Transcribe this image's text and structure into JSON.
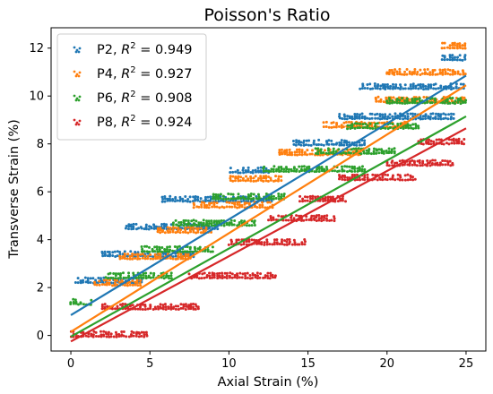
{
  "chart_data": {
    "type": "scatter",
    "title": "Poisson's Ratio",
    "xlabel": "Axial Strain (%)",
    "ylabel": "Transverse Strain (%)",
    "xlim": [
      -1.25,
      26.25
    ],
    "ylim": [
      -0.65,
      12.85
    ],
    "xticks": [
      0,
      5,
      10,
      15,
      20,
      25
    ],
    "yticks": [
      0,
      2,
      4,
      6,
      8,
      10,
      12
    ],
    "grid": false,
    "legend_position": "top-left",
    "series": [
      {
        "name": "P2",
        "r2": "0.949",
        "color": "#1f77b4",
        "fit": {
          "x": [
            0,
            25
          ],
          "y": [
            0.85,
            10.85
          ]
        },
        "bands": [
          {
            "x": [
              0.3,
              4.6
            ],
            "y": 2.3
          },
          {
            "x": [
              2.0,
              7.8
            ],
            "y": 3.4
          },
          {
            "x": [
              3.5,
              9.4
            ],
            "y": 4.55
          },
          {
            "x": [
              5.8,
              12.8
            ],
            "y": 5.7
          },
          {
            "x": [
              10.1,
              12.6
            ],
            "y": 6.9
          },
          {
            "x": [
              14.1,
              18.7
            ],
            "y": 8.05
          },
          {
            "x": [
              17.0,
              24.3
            ],
            "y": 9.15
          },
          {
            "x": [
              18.3,
              25.0
            ],
            "y": 10.4
          },
          {
            "x": [
              23.5,
              25.0
            ],
            "y": 11.6
          }
        ]
      },
      {
        "name": "P4",
        "r2": "0.927",
        "color": "#ff7f0e",
        "fit": {
          "x": [
            0,
            25
          ],
          "y": [
            0.15,
            10.45
          ]
        },
        "bands": [
          {
            "x": [
              1.5,
              4.5
            ],
            "y": 2.2
          },
          {
            "x": [
              3.1,
              7.7
            ],
            "y": 3.3
          },
          {
            "x": [
              5.5,
              9.0
            ],
            "y": 4.4
          },
          {
            "x": [
              7.8,
              12.9
            ],
            "y": 5.45
          },
          {
            "x": [
              10.1,
              13.4
            ],
            "y": 6.55
          },
          {
            "x": [
              13.2,
              18.4
            ],
            "y": 7.65
          },
          {
            "x": [
              16.0,
              21.4
            ],
            "y": 8.8
          },
          {
            "x": [
              19.3,
              25.0
            ],
            "y": 9.85
          },
          {
            "x": [
              20.0,
              25.0
            ],
            "y": 11.0
          },
          {
            "x": [
              23.5,
              25.0
            ],
            "y": 12.1
          }
        ]
      },
      {
        "name": "P6",
        "r2": "0.908",
        "color": "#2ca02c",
        "fit": {
          "x": [
            0,
            25
          ],
          "y": [
            -0.05,
            9.15
          ]
        },
        "bands": [
          {
            "x": [
              0.0,
              1.4
            ],
            "y": 1.4
          },
          {
            "x": [
              2.2,
              6.5
            ],
            "y": 2.5
          },
          {
            "x": [
              4.5,
              9.1
            ],
            "y": 3.6
          },
          {
            "x": [
              6.5,
              11.7
            ],
            "y": 4.7
          },
          {
            "x": [
              9.0,
              13.5
            ],
            "y": 5.8
          },
          {
            "x": [
              12.2,
              18.6
            ],
            "y": 6.95
          },
          {
            "x": [
              15.5,
              20.6
            ],
            "y": 7.7
          },
          {
            "x": [
              17.5,
              22.0
            ],
            "y": 8.75
          },
          {
            "x": [
              20.0,
              25.0
            ],
            "y": 9.8
          }
        ]
      },
      {
        "name": "P8",
        "r2": "0.924",
        "color": "#d62728",
        "fit": {
          "x": [
            0,
            25
          ],
          "y": [
            -0.25,
            8.65
          ]
        },
        "bands": [
          {
            "x": [
              0.0,
              4.8
            ],
            "y": 0.05
          },
          {
            "x": [
              2.0,
              8.1
            ],
            "y": 1.2
          },
          {
            "x": [
              7.5,
              13.0
            ],
            "y": 2.5
          },
          {
            "x": [
              10.0,
              14.9
            ],
            "y": 3.9
          },
          {
            "x": [
              12.5,
              16.8
            ],
            "y": 4.9
          },
          {
            "x": [
              14.5,
              17.5
            ],
            "y": 5.7
          },
          {
            "x": [
              17.0,
              21.8
            ],
            "y": 6.6
          },
          {
            "x": [
              20.0,
              24.3
            ],
            "y": 7.2
          },
          {
            "x": [
              22.0,
              25.0
            ],
            "y": 8.1
          }
        ]
      }
    ]
  }
}
